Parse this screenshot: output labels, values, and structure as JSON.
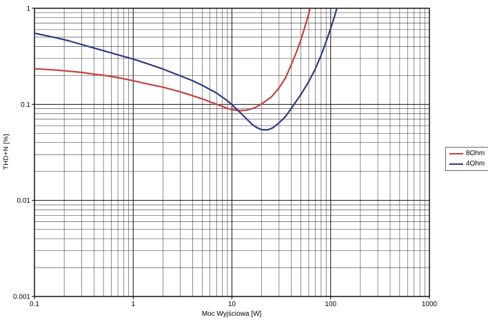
{
  "chart_data": {
    "type": "line",
    "title": "",
    "xlabel": "Moc Wyjściowa [W]",
    "ylabel": "THD+N [%]",
    "x_scale": "log",
    "y_scale": "log",
    "xlim": [
      0.1,
      1000
    ],
    "ylim": [
      0.001,
      1
    ],
    "x_ticks": [
      0.1,
      1,
      10,
      100,
      1000
    ],
    "y_ticks": [
      0.001,
      0.01,
      0.1,
      1
    ],
    "grid": "log major and minor, black lines",
    "legend_position": "right-outside",
    "background_color": "#ffffff",
    "border_color": "#000000",
    "grid_major_color": "#111111",
    "grid_minor_color": "#2e2e2e",
    "series": [
      {
        "name": "8Ohm",
        "color": "#c8403a",
        "x": [
          0.1,
          0.13,
          0.17,
          0.22,
          0.3,
          0.4,
          0.55,
          0.7,
          1,
          1.4,
          2,
          3,
          4,
          5,
          7,
          9,
          10,
          12,
          14,
          17,
          20,
          25,
          30,
          35,
          40,
          45,
          50,
          55,
          60,
          63
        ],
        "y": [
          0.235,
          0.231,
          0.227,
          0.222,
          0.215,
          0.206,
          0.198,
          0.19,
          0.176,
          0.163,
          0.151,
          0.135,
          0.123,
          0.114,
          0.1,
          0.091,
          0.088,
          0.086,
          0.087,
          0.092,
          0.101,
          0.119,
          0.148,
          0.19,
          0.26,
          0.35,
          0.47,
          0.65,
          0.88,
          1.08
        ]
      },
      {
        "name": "4Ohm",
        "color": "#2c3a85",
        "x": [
          0.1,
          0.13,
          0.17,
          0.22,
          0.3,
          0.4,
          0.55,
          0.7,
          1,
          1.4,
          2,
          3,
          4,
          5,
          7,
          9,
          10,
          12,
          14,
          16,
          18,
          20,
          23,
          26,
          30,
          35,
          40,
          50,
          60,
          70,
          80,
          90,
          100,
          110,
          118
        ],
        "y": [
          0.55,
          0.52,
          0.49,
          0.46,
          0.42,
          0.386,
          0.352,
          0.327,
          0.296,
          0.264,
          0.233,
          0.198,
          0.176,
          0.158,
          0.131,
          0.109,
          0.099,
          0.083,
          0.071,
          0.062,
          0.057,
          0.0545,
          0.0542,
          0.057,
          0.064,
          0.075,
          0.091,
          0.127,
          0.173,
          0.235,
          0.325,
          0.45,
          0.62,
          0.84,
          1.08
        ]
      }
    ]
  }
}
